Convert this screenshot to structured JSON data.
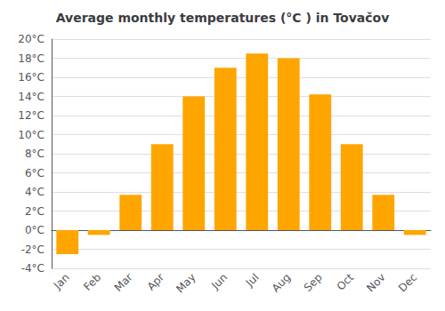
{
  "chart_data": {
    "type": "bar",
    "title": "Average monthly temperatures (°C ) in Tovačov",
    "categories": [
      "Jan",
      "Feb",
      "Mar",
      "Apr",
      "May",
      "Jun",
      "Jul",
      "Aug",
      "Sep",
      "Oct",
      "Nov",
      "Dec"
    ],
    "values": [
      -2.5,
      -0.5,
      3.7,
      9.0,
      14.0,
      17.0,
      18.5,
      18.0,
      14.2,
      9.0,
      3.7,
      -0.5
    ],
    "color": "#FFA500",
    "ylim": [
      -4,
      20
    ],
    "yticks": [
      {
        "value": -4,
        "label": "-4°C"
      },
      {
        "value": -2,
        "label": "-2°C"
      },
      {
        "value": 0,
        "label": "0°C"
      },
      {
        "value": 2,
        "label": "2°C"
      },
      {
        "value": 4,
        "label": "4°C"
      },
      {
        "value": 6,
        "label": "6°C"
      },
      {
        "value": 8,
        "label": "8°C"
      },
      {
        "value": 10,
        "label": "10°C"
      },
      {
        "value": 12,
        "label": "12°C"
      },
      {
        "value": 14,
        "label": "14°C"
      },
      {
        "value": 16,
        "label": "16°C"
      },
      {
        "value": 18,
        "label": "18°C"
      },
      {
        "value": 20,
        "label": "20°C"
      }
    ],
    "grid": true
  }
}
